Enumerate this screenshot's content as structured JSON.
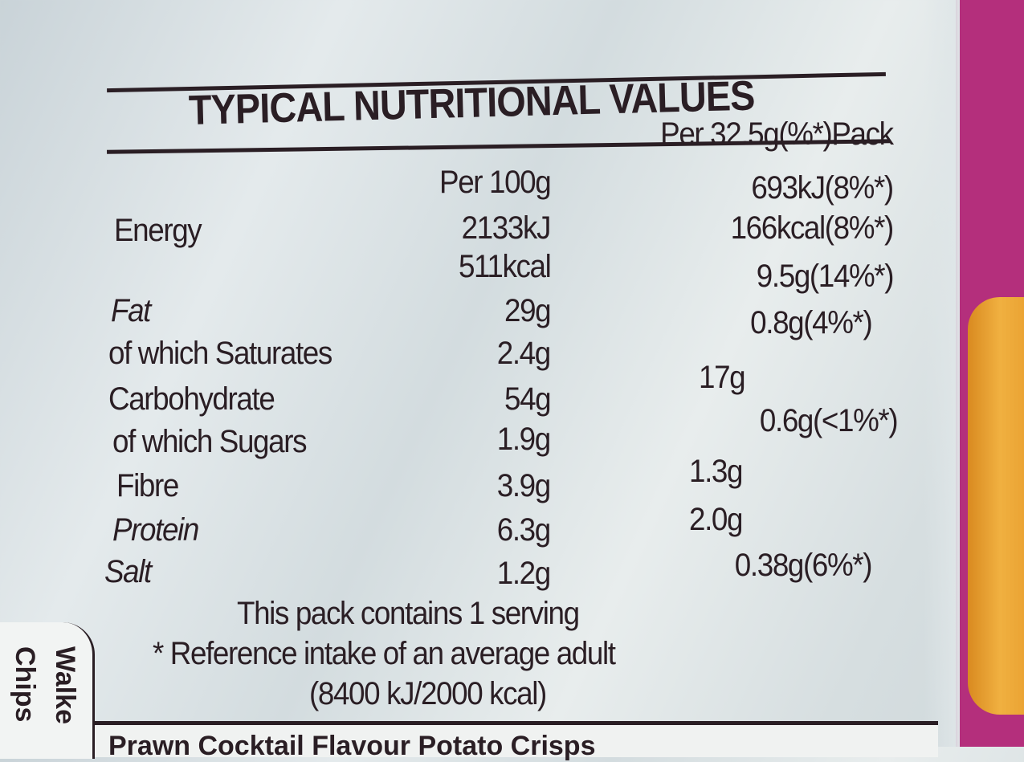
{
  "label": {
    "title": "TYPICAL NUTRITIONAL VALUES",
    "col_per100": "Per 100g",
    "col_perpack": "Per 32.5g(%*)Pack",
    "rows": [
      {
        "name": "Energy",
        "per100": "2133kJ",
        "perpack": "693kJ(8%*)"
      },
      {
        "name": "",
        "per100": "511kcal",
        "perpack": "166kcal(8%*)"
      },
      {
        "name": "Fat",
        "per100": "29g",
        "perpack": "9.5g(14%*)"
      },
      {
        "name": "of which Saturates",
        "per100": "2.4g",
        "perpack": "0.8g(4%*)"
      },
      {
        "name": "Carbohydrate",
        "per100": "54g",
        "perpack": "17g"
      },
      {
        "name": "of which Sugars",
        "per100": "1.9g",
        "perpack": "0.6g(<1%*)"
      },
      {
        "name": "Fibre",
        "per100": "3.9g",
        "perpack": "1.3g"
      },
      {
        "name": "Protein",
        "per100": "6.3g",
        "perpack": "2.0g"
      },
      {
        "name": "Salt",
        "per100": "1.2g",
        "perpack": "0.38g(6%*)"
      }
    ],
    "servings": "This pack contains 1 serving",
    "reference": "* Reference intake of an average adult",
    "reference_values": "(8400 kJ/2000 kcal)"
  },
  "side_tab": {
    "line1": "Walke",
    "line2": "Chips"
  },
  "product_line": "Prawn Cocktail Flavour Potato Crisps",
  "colors": {
    "background": "#d8dfe2",
    "text": "#2a1e24",
    "pack_pink": "#b42f7c",
    "crisp": "#e9a030"
  }
}
